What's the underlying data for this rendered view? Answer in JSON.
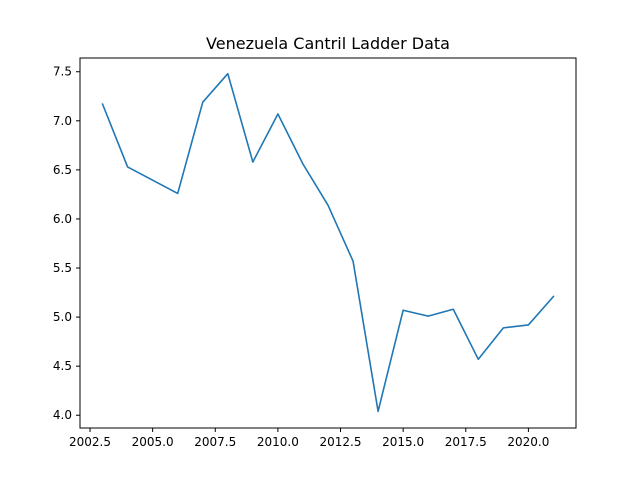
{
  "chart_data": {
    "type": "line",
    "title": "Venezuela Cantril Ladder Data",
    "xlabel": "",
    "ylabel": "",
    "xlim": [
      2002.1,
      2021.9
    ],
    "ylim": [
      3.87,
      7.64
    ],
    "x_ticks": [
      2002.5,
      2005.0,
      2007.5,
      2010.0,
      2012.5,
      2015.0,
      2017.5,
      2020.0
    ],
    "x_tick_labels": [
      "2002.5",
      "2005.0",
      "2007.5",
      "2010.0",
      "2012.5",
      "2015.0",
      "2017.5",
      "2020.0"
    ],
    "y_ticks": [
      4.0,
      4.5,
      5.0,
      5.5,
      6.0,
      6.5,
      7.0,
      7.5
    ],
    "y_tick_labels": [
      "4.0",
      "4.5",
      "5.0",
      "5.5",
      "6.0",
      "6.5",
      "7.0",
      "7.5"
    ],
    "grid": false,
    "series": [
      {
        "color": "#1f77b4",
        "x": [
          2003,
          2004,
          2006,
          2007,
          2008,
          2009,
          2010,
          2011,
          2012,
          2013,
          2014,
          2015,
          2016,
          2017,
          2018,
          2019,
          2020,
          2021
        ],
        "y": [
          7.17,
          6.53,
          6.26,
          7.19,
          7.48,
          6.58,
          7.07,
          6.56,
          6.14,
          5.57,
          4.04,
          5.07,
          5.01,
          5.08,
          4.57,
          4.89,
          4.92,
          5.21
        ]
      }
    ]
  }
}
